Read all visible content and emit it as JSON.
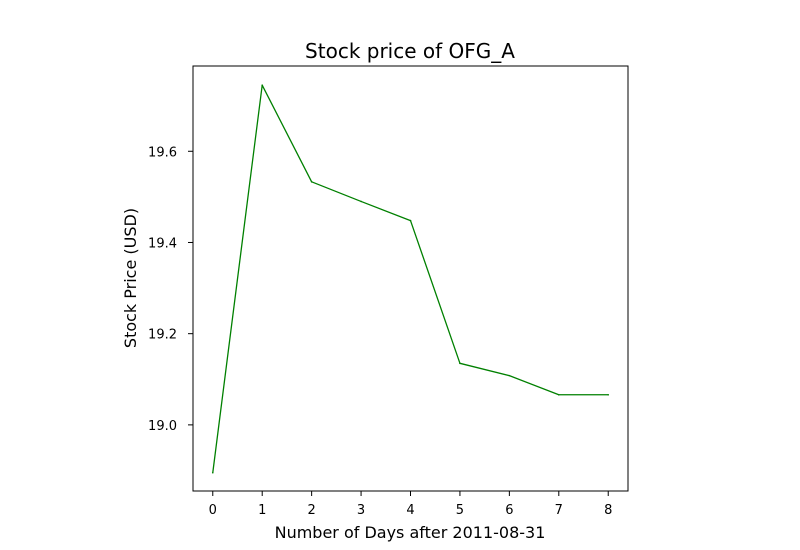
{
  "chart_data": {
    "type": "line",
    "title": "Stock price of OFG_A",
    "xlabel": "Number of Days after 2011-08-31",
    "ylabel": "Stock Price (USD)",
    "x": [
      0,
      1,
      2,
      3,
      4,
      5,
      6,
      7,
      8
    ],
    "series": [
      {
        "values": [
          18.895,
          19.745,
          19.533,
          19.49,
          19.448,
          19.135,
          19.108,
          19.066,
          19.066
        ],
        "color": "#008000"
      }
    ],
    "xlim": [
      -0.4,
      8.4
    ],
    "ylim": [
      18.855,
      19.787
    ],
    "xticks": [
      0,
      1,
      2,
      3,
      4,
      5,
      6,
      7,
      8
    ],
    "yticks": [
      19.0,
      19.2,
      19.4,
      19.6
    ],
    "xtick_labels": [
      "0",
      "1",
      "2",
      "3",
      "4",
      "5",
      "6",
      "7",
      "8"
    ],
    "ytick_labels": [
      "19.0",
      "19.2",
      "19.4",
      "19.6"
    ],
    "grid": false,
    "legend": false
  }
}
